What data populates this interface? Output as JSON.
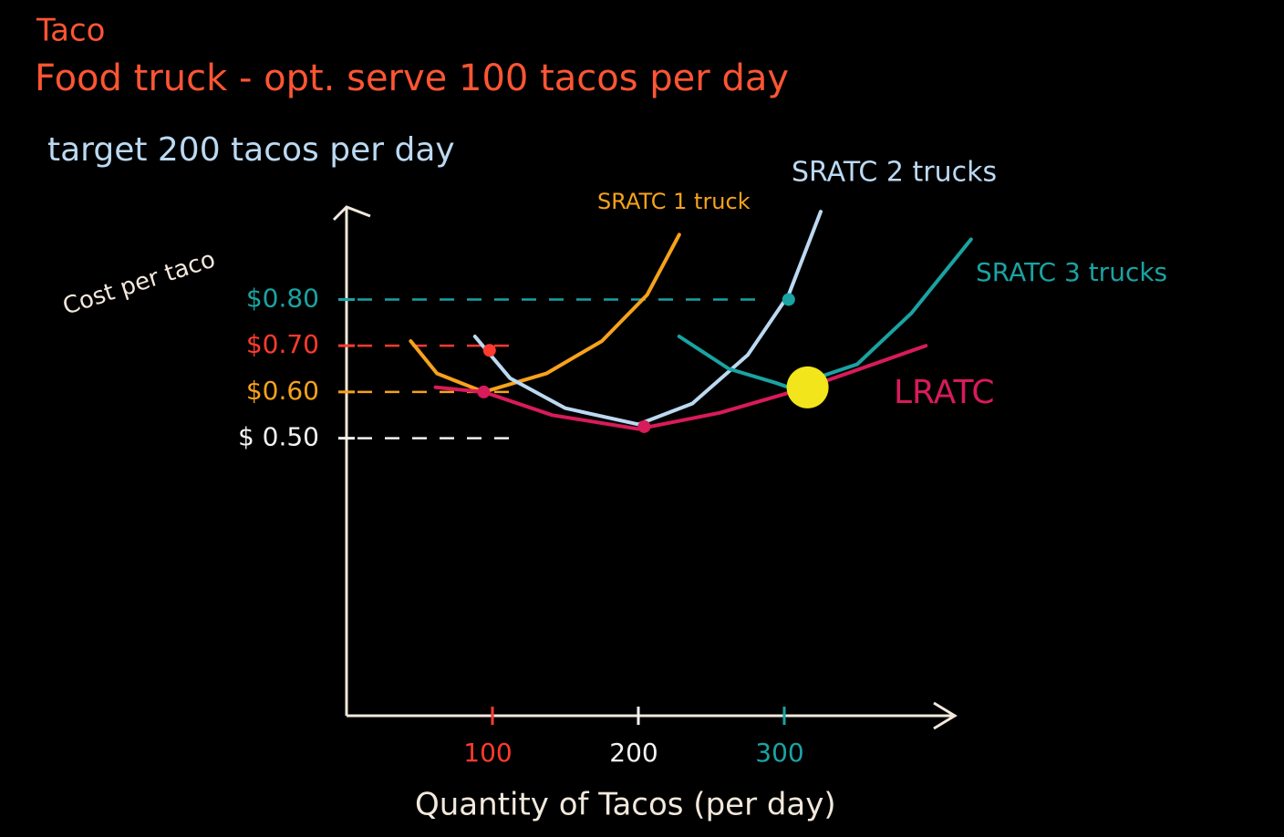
{
  "chart_data": {
    "type": "line",
    "title": "Taco",
    "subtitle": "Food truck - opt. serve 100 tacos per day",
    "annotation": "target 200 tacos per day",
    "ylabel": "Cost per taco",
    "xlabel": "Quantity of Tacos (per day)",
    "xlim": [
      0,
      420
    ],
    "ylim": [
      -0.1,
      1.0
    ],
    "xticks": [
      100,
      200,
      300
    ],
    "xtick_colors": [
      "#ff3b2f",
      "#f2f2f2",
      "#1aa3a3"
    ],
    "yticks": [
      {
        "value": 0.8,
        "label": "$0.80"
      },
      {
        "value": 0.7,
        "label": "$0.70"
      },
      {
        "value": 0.6,
        "label": "$0.60"
      },
      {
        "value": 0.5,
        "label": "$ 0.50"
      }
    ],
    "ytick_colors": [
      "#1aa3a3",
      "#ff3b2f",
      "#f7a21b",
      "#f2f2f2"
    ],
    "series": [
      {
        "name": "SRATC 1 truck",
        "color": "#f7a21b",
        "x": [
          44,
          62,
          94,
          137,
          175,
          206,
          228
        ],
        "values": [
          0.71,
          0.64,
          0.6,
          0.64,
          0.71,
          0.81,
          0.94
        ]
      },
      {
        "name": "SRATC 2 trucks",
        "color": "#bcd9f2",
        "x": [
          88,
          112,
          150,
          200,
          237,
          275,
          303,
          325
        ],
        "values": [
          0.72,
          0.63,
          0.565,
          0.53,
          0.575,
          0.68,
          0.81,
          0.99
        ]
      },
      {
        "name": "SRATC 3 trucks",
        "color": "#1aa3a3",
        "x": [
          228,
          262,
          294,
          303,
          350,
          387,
          428
        ],
        "values": [
          0.72,
          0.65,
          0.62,
          0.61,
          0.66,
          0.77,
          0.93
        ]
      },
      {
        "name": "LRATC",
        "color": "#d81b5a",
        "x": [
          61,
          94,
          141,
          200,
          256,
          316,
          397
        ],
        "values": [
          0.61,
          0.6,
          0.55,
          0.52,
          0.555,
          0.61,
          0.7
        ]
      }
    ],
    "points": [
      {
        "x": 98,
        "y": 0.69,
        "color": "#ff3b2f"
      },
      {
        "x": 94,
        "y": 0.6,
        "color": "#d81b5a"
      },
      {
        "x": 204,
        "y": 0.525,
        "color": "#d81b5a"
      },
      {
        "x": 303,
        "y": 0.8,
        "color": "#1aa3a3"
      },
      {
        "x": 316,
        "y": 0.61,
        "color": "#f2e51b"
      }
    ]
  }
}
